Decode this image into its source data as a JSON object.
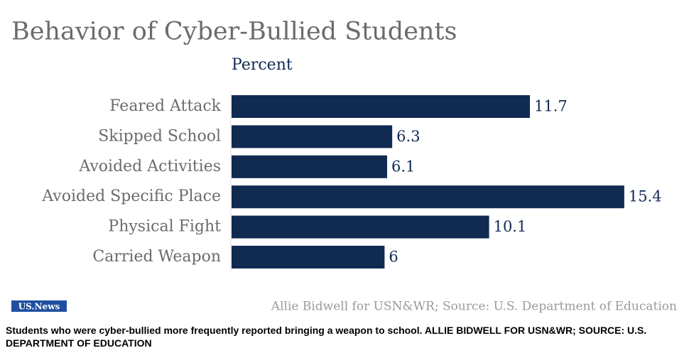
{
  "chart_data": {
    "type": "bar",
    "orientation": "horizontal",
    "title": "Behavior of Cyber-Bullied Students",
    "subtitle": "Percent",
    "categories": [
      "Feared Attack",
      "Skipped School",
      "Avoided Activities",
      "Avoided Specific Place",
      "Physical Fight",
      "Carried Weapon"
    ],
    "values": [
      11.7,
      6.3,
      6.1,
      15.4,
      10.1,
      6
    ],
    "color": "#102a52",
    "source": "Allie Bidwell for USN&WR; Source: U.S. Department of Education",
    "logo": "US.News"
  },
  "caption": "Students who were cyber-bullied more frequently reported bringing a weapon to school. ALLIE BIDWELL FOR USN&WR; SOURCE: U.S. DEPARTMENT OF EDUCATION"
}
